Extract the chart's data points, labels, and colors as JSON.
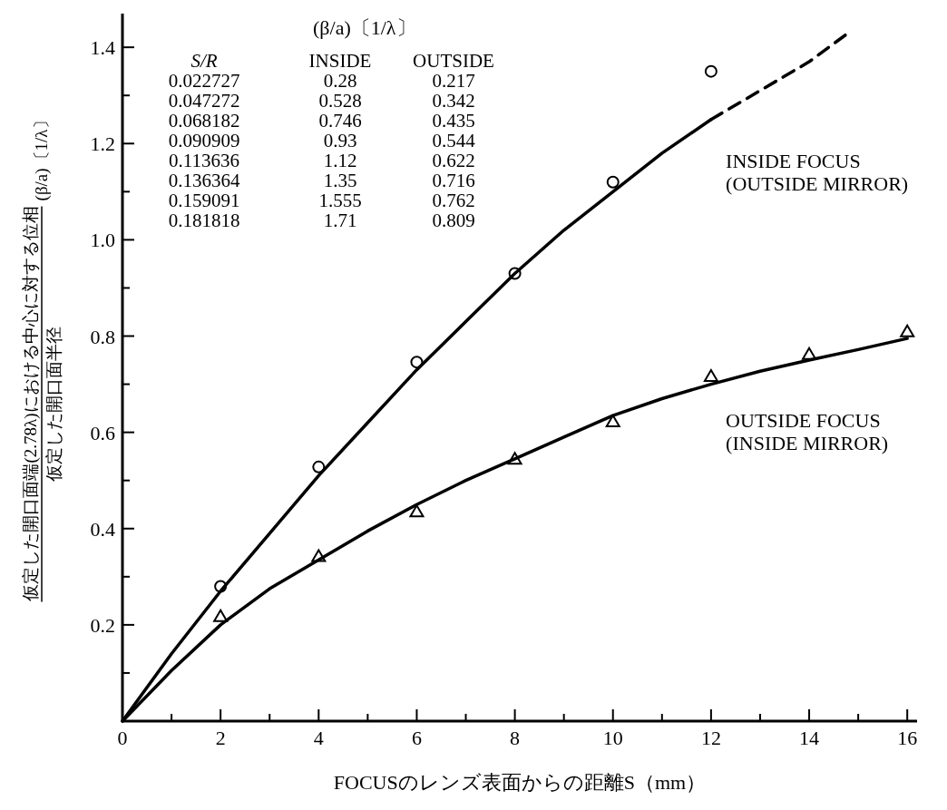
{
  "chart_data": {
    "type": "scatter",
    "xlabel": "FOCUSのレンズ表面からの距離S（mm）",
    "ylabel": "仮定した開口面端(2.78λ)における中心に対する位相",
    "xlim": [
      0,
      16.2
    ],
    "ylim": [
      0,
      1.47
    ],
    "xticks": [
      0,
      {
        "value": 1,
        "label": null
      },
      2,
      {
        "value": 3,
        "label": null
      },
      4,
      {
        "value": 5,
        "label": null
      },
      6,
      {
        "value": 7,
        "label": null
      },
      8,
      {
        "value": 9,
        "label": null
      },
      10,
      {
        "value": 11,
        "label": null
      },
      12,
      {
        "value": 13,
        "label": null
      },
      14,
      {
        "value": 15,
        "label": null
      },
      16
    ],
    "yticks": [
      {
        "value": 0.1,
        "label": null
      },
      0.2,
      {
        "value": 0.3,
        "label": null
      },
      0.4,
      {
        "value": 0.5,
        "label": null
      },
      0.6,
      {
        "value": 0.7,
        "label": null
      },
      0.8,
      {
        "value": 0.9,
        "label": null
      },
      {
        "value": 1.0,
        "label": "1.0"
      },
      {
        "value": 1.1,
        "label": null
      },
      1.2,
      {
        "value": 1.3,
        "label": null
      },
      1.4
    ],
    "grid": false,
    "series": [
      {
        "marker": "circle",
        "color": "#000000",
        "x": [
          2,
          4,
          6,
          8,
          10,
          12
        ],
        "values": [
          0.28,
          0.528,
          0.746,
          0.93,
          1.12,
          1.35
        ]
      },
      {
        "marker": "triangle",
        "color": "#000000",
        "x": [
          2,
          4,
          6,
          8,
          10,
          12,
          14,
          16
        ],
        "values": [
          0.217,
          0.342,
          0.435,
          0.544,
          0.622,
          0.716,
          0.762,
          0.809
        ]
      },
      {
        "type": "line",
        "line_style": "solid",
        "color": "#000000",
        "x": [
          0,
          1,
          2,
          3,
          4,
          5,
          6,
          7,
          8,
          9,
          10,
          11,
          12
        ],
        "values": [
          0,
          0.14,
          0.27,
          0.39,
          0.51,
          0.62,
          0.73,
          0.83,
          0.93,
          1.02,
          1.1,
          1.18,
          1.25
        ]
      },
      {
        "type": "line",
        "line_style": "dashed",
        "color": "#000000",
        "x": [
          12,
          13,
          14,
          14.8
        ],
        "values": [
          1.25,
          1.31,
          1.37,
          1.43
        ]
      },
      {
        "type": "line",
        "line_style": "solid",
        "color": "#000000",
        "x": [
          0,
          1,
          2,
          3,
          4,
          5,
          6,
          7,
          8,
          9,
          10,
          11,
          12,
          13,
          14,
          15,
          16
        ],
        "values": [
          0,
          0.105,
          0.2,
          0.275,
          0.335,
          0.395,
          0.45,
          0.5,
          0.545,
          0.59,
          0.635,
          0.67,
          0.7,
          0.727,
          0.75,
          0.772,
          0.795
        ]
      }
    ],
    "annotations": [
      "(β/a)〔1/λ〕",
      "S/R\tINSIDE\tOUTSIDE",
      "0.022727\t0.28\t0.217",
      "0.047272\t0.528\t0.342",
      "0.068182\t0.746\t0.435",
      "0.090909\t0.93\t0.544",
      "0.113636\t1.12\t0.622",
      "0.136364\t1.35\t0.716",
      "0.159091\t1.555\t0.762",
      "0.181818\t1.71\t0.809",
      "INSIDE FOCUS\n(OUTSIDE MIRROR)",
      "OUTSIDE FOCUS\n(INSIDE MIRROR)",
      "仮定した開口面半径",
      "(β/a)〔1/λ〕"
    ]
  }
}
